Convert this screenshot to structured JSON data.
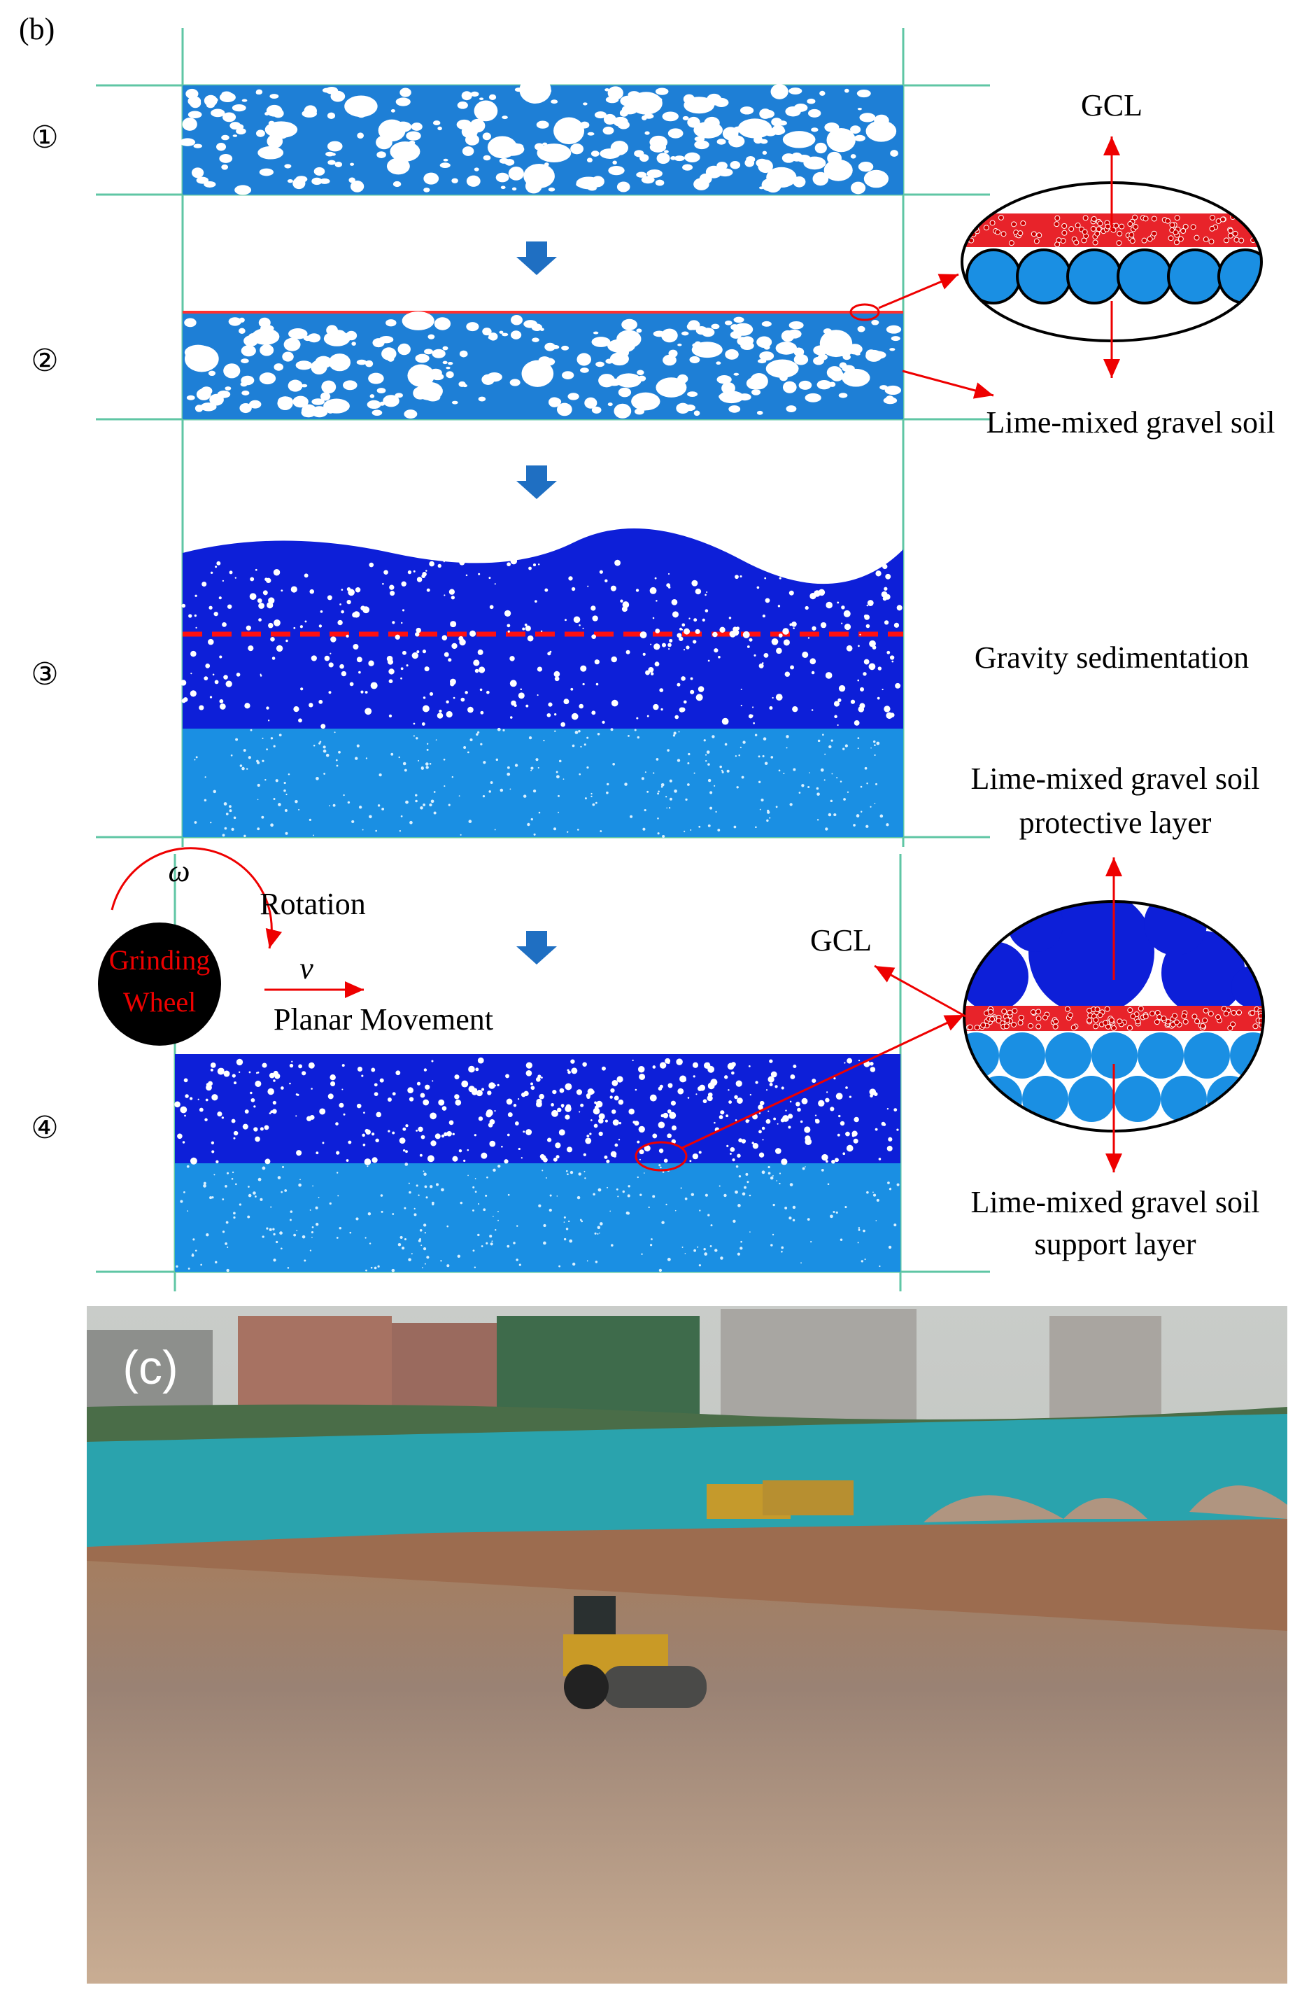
{
  "panel_b": {
    "label": "(b)",
    "steps": [
      "①",
      "②",
      "③",
      "④"
    ],
    "gcl_top": "GCL",
    "gravel_soil": "Lime-mixed gravel soil",
    "gravity": "Gravity sedimentation",
    "protective": [
      "Lime-mixed gravel soil",
      "protective layer"
    ],
    "omega": "ω",
    "rotation": "Rotation",
    "wheel": [
      "Grinding",
      "Wheel"
    ],
    "v": "v",
    "planar": "Planar Movement",
    "gcl_bottom": "GCL",
    "support": [
      "Lime-mixed gravel soil",
      "support layer"
    ]
  },
  "panel_c": {
    "label": "(c)"
  }
}
